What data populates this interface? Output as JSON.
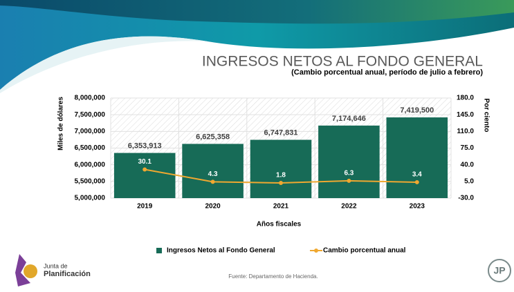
{
  "chart_data": {
    "type": "bar",
    "title": "INGRESOS NETOS AL FONDO GENERAL",
    "subtitle": "(Cambio porcentual anual, período de julio a febrero)",
    "x_label": "Años fiscales",
    "y_label": "Miles de dólares",
    "y2_label": "Por ciento",
    "categories": [
      "2019",
      "2020",
      "2021",
      "2022",
      "2023"
    ],
    "series": [
      {
        "name": "Ingresos Netos al Fondo General",
        "color": "#176b57",
        "values": [
          6353913,
          6625358,
          6747831,
          7174646,
          7419500
        ],
        "value_labels": [
          "6,353,913",
          "6,625,358",
          "6,747,831",
          "7,174,646",
          "7,419,500"
        ]
      },
      {
        "name": "Cambio porcentual anual",
        "color": "#f0a830",
        "type": "line",
        "axis": "y2",
        "values": [
          30.1,
          4.3,
          1.8,
          6.3,
          3.4
        ]
      }
    ],
    "ylim": [
      5000000,
      8000000
    ],
    "yticks": [
      {
        "value": 5000000,
        "label": "5,000,000"
      },
      {
        "value": 5500000,
        "label": "5,500,000"
      },
      {
        "value": 6000000,
        "label": "6,000,000"
      },
      {
        "value": 6500000,
        "label": "6,500,000"
      },
      {
        "value": 7000000,
        "label": "7,000,000"
      },
      {
        "value": 7500000,
        "label": "7,500,000"
      },
      {
        "value": 8000000,
        "label": "8,000,000"
      }
    ],
    "y2lim": [
      -30,
      180
    ],
    "y2ticks": [
      {
        "value": -30,
        "label": "-30.0"
      },
      {
        "value": 5,
        "label": "5.0"
      },
      {
        "value": 40,
        "label": "40.0"
      },
      {
        "value": 75,
        "label": "75.0"
      },
      {
        "value": 110,
        "label": "110.0"
      },
      {
        "value": 145,
        "label": "145.0"
      },
      {
        "value": 180,
        "label": "180.0"
      }
    ],
    "legend": "bottom",
    "source": "Fuente: Departamento de Hacienda."
  },
  "logo": {
    "line1": "Junta de",
    "line2": "Planificación",
    "badge": "JP"
  }
}
